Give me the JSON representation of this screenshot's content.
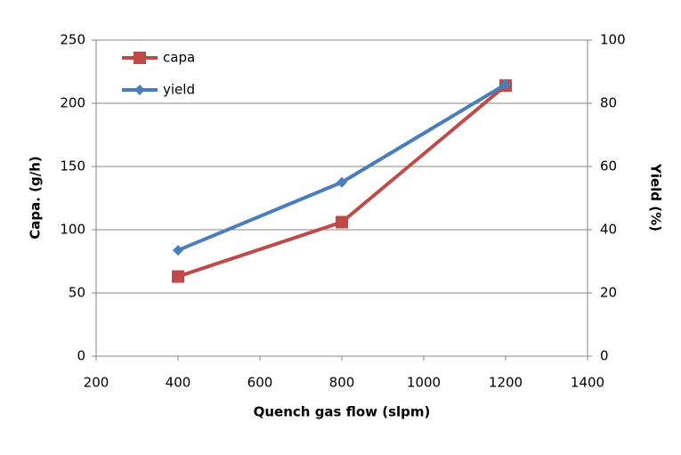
{
  "chart_data": {
    "type": "line",
    "x": [
      400,
      800,
      1200
    ],
    "series": [
      {
        "name": "capa",
        "color": "#be4b48",
        "marker": "square",
        "values": [
          63,
          106,
          214
        ]
      },
      {
        "name": "yield",
        "color": "#4a7ebb",
        "marker": "diamond",
        "axis": "y2",
        "values": [
          33.5,
          55,
          86
        ]
      }
    ],
    "xlabel": "Quench gas flow (slpm)",
    "ylabel": "Capa. (g/h)",
    "y2label": "Yield (%)",
    "xlim": [
      200,
      1400
    ],
    "xticks": [
      200,
      400,
      600,
      800,
      1000,
      1200,
      1400
    ],
    "ylim": [
      0,
      250
    ],
    "yticks": [
      0,
      50,
      100,
      150,
      200,
      250
    ],
    "y2lim": [
      0,
      100
    ],
    "y2ticks": [
      0,
      20,
      40,
      60,
      80,
      100
    ],
    "grid": true,
    "legend": "top-left"
  }
}
